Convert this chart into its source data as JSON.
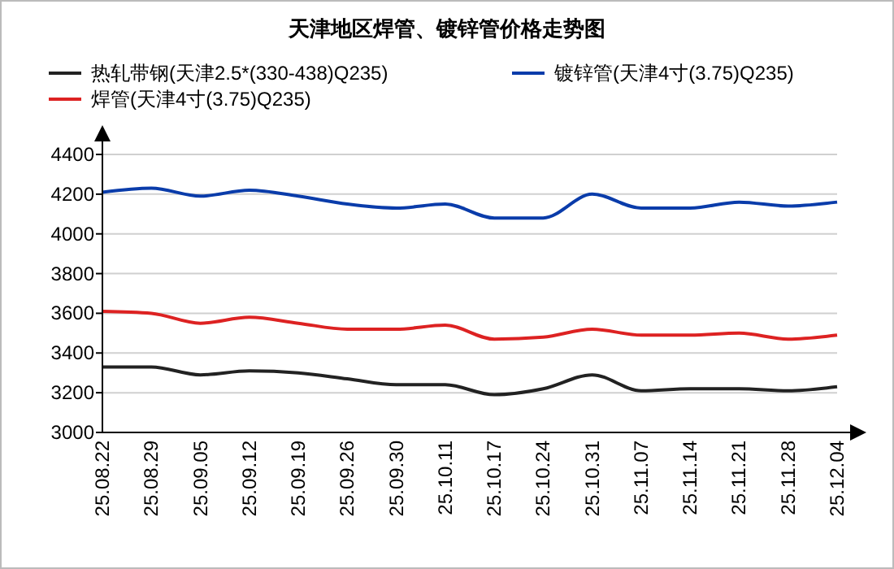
{
  "chart_data": {
    "type": "line",
    "title": "天津地区焊管、镀锌管价格走势图",
    "categories": [
      "25.08.22",
      "25.08.29",
      "25.09.05",
      "25.09.12",
      "25.09.19",
      "25.09.26",
      "25.09.30",
      "25.10.11",
      "25.10.17",
      "25.10.24",
      "25.10.31",
      "25.11.07",
      "25.11.14",
      "25.11.21",
      "25.11.28",
      "25.12.04"
    ],
    "series": [
      {
        "name": "热轧带钢(天津2.5*(330-438)Q235)",
        "color": "#222222",
        "values": [
          3330,
          3330,
          3290,
          3310,
          3300,
          3270,
          3240,
          3240,
          3190,
          3220,
          3290,
          3210,
          3220,
          3220,
          3210,
          3230
        ]
      },
      {
        "name": "镀锌管(天津4寸(3.75)Q235)",
        "color": "#0a3caa",
        "values": [
          4210,
          4230,
          4190,
          4220,
          4190,
          4150,
          4130,
          4150,
          4080,
          4080,
          4200,
          4130,
          4130,
          4160,
          4140,
          4160
        ]
      },
      {
        "name": "焊管(天津4寸(3.75)Q235)",
        "color": "#dd2222",
        "values": [
          3610,
          3600,
          3550,
          3580,
          3550,
          3520,
          3520,
          3540,
          3470,
          3480,
          3520,
          3490,
          3490,
          3500,
          3470,
          3490
        ]
      }
    ],
    "ylim": [
      3000,
      4400
    ],
    "yticks": [
      3000,
      3200,
      3400,
      3600,
      3800,
      4000,
      4200,
      4400
    ],
    "grid": "y",
    "legend": "top",
    "marker": "none",
    "line_style": "solid"
  }
}
